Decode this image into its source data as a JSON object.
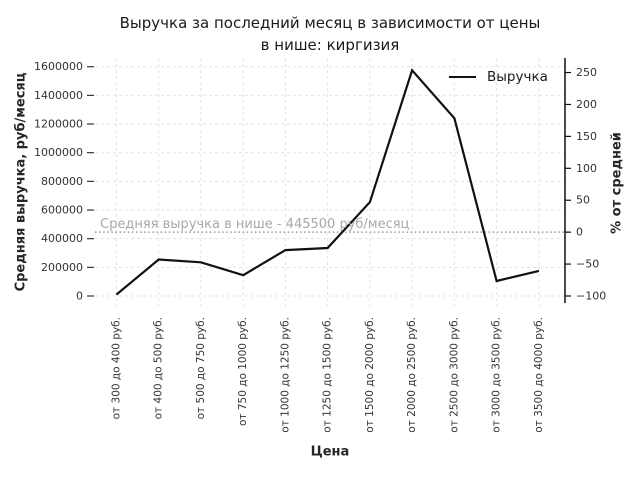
{
  "chart_data": {
    "type": "line",
    "title_lines": [
      "Выручка за последний месяц в зависимости от цены",
      "в нише: киргизия"
    ],
    "xlabel": "Цена",
    "ylabel_left": "Средняя выручка, руб/месяц",
    "ylabel_right": "% от средней",
    "categories": [
      "от 300 до 400 руб.",
      "от 400 до 500 руб.",
      "от 500 до 750 руб.",
      "от 750 до 1000 руб.",
      "от 1000 до 1250 руб.",
      "от 1250 до 1500 руб.",
      "от 1500 до 2000 руб.",
      "от 2000 до 2500 руб.",
      "от 2500 до 3000 руб.",
      "от 3000 до 3500 руб.",
      "от 3500 до 4000 руб."
    ],
    "series": [
      {
        "name": "Выручка",
        "values": [
          10000,
          255000,
          235000,
          145000,
          320000,
          335000,
          655000,
          1575000,
          1240000,
          105000,
          175000
        ]
      }
    ],
    "ylim_left": [
      0,
      1600000
    ],
    "yticks_left": [
      0,
      200000,
      400000,
      600000,
      800000,
      1000000,
      1200000,
      1400000,
      1600000
    ],
    "yticks_right": [
      -100,
      -50,
      0,
      50,
      100,
      150,
      200,
      250
    ],
    "average_value": 445500,
    "average_label": "Средняя выручка в нише - 445500 руб/месяц",
    "legend": {
      "position": "top-right",
      "entries": [
        "Выручка"
      ]
    },
    "grid": true,
    "colors": {
      "line": "#111111",
      "grid": "#e3e3e3",
      "average_line": "#999999",
      "annotation_text": "#a8a8a8",
      "tick_text": "#333333",
      "axis_text": "#262626",
      "spine": "#111111"
    }
  }
}
